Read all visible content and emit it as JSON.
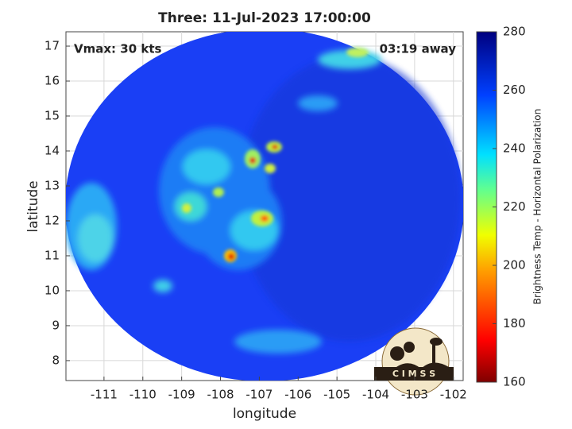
{
  "chart_data": {
    "type": "image",
    "title": "Three: 11-Jul-2023 17:00:00",
    "xlabel": "longitude",
    "ylabel": "latitude",
    "xlim": [
      -111.98,
      -101.75
    ],
    "ylim": [
      7.43,
      17.41
    ],
    "xticks": [
      -111,
      -110,
      -109,
      -108,
      -107,
      -106,
      -105,
      -104,
      -103,
      -102
    ],
    "yticks": [
      8,
      9,
      10,
      11,
      12,
      13,
      14,
      15,
      16,
      17
    ],
    "grid": true,
    "annotations": [
      "Vmax: 30 kts",
      "03:19 away"
    ],
    "logo": "C I M S S",
    "colorbar": {
      "label": "Brightness Temp - Horizontal Polarization",
      "lim": [
        160,
        280
      ],
      "ticks": [
        160,
        180,
        200,
        220,
        240,
        260,
        280
      ]
    }
  }
}
